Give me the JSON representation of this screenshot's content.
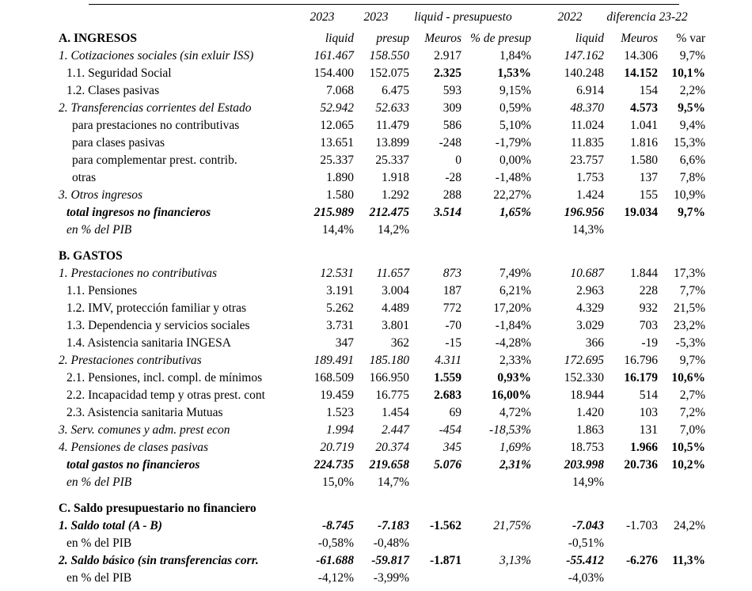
{
  "header_top": {
    "c1": "2023",
    "c2": "2023",
    "c34": "liquid - presupuesto",
    "c5": "2022",
    "c67": "diferencia 23-22"
  },
  "rows": [
    {
      "label": "A. INGRESOS",
      "ls": "b",
      "ind": 0,
      "cells": [
        "liquid",
        "presup",
        "Meuros",
        "% de presup",
        "liquid",
        "Meuros",
        "% var"
      ],
      "cs": [
        "i",
        "i",
        "i",
        "i",
        "i",
        "i",
        "n"
      ]
    },
    {
      "label": "1. Cotizaciones sociales (sin exluir ISS)",
      "ls": "i",
      "ind": 0,
      "cells": [
        "161.467",
        "158.550",
        "2.917",
        "1,84%",
        "147.162",
        "14.306",
        "9,7%"
      ],
      "cs": [
        "i",
        "i",
        "n",
        "n",
        "i",
        "n",
        "n"
      ]
    },
    {
      "label": "1.1. Seguridad Social",
      "ls": "n",
      "ind": 1,
      "cells": [
        "154.400",
        "152.075",
        "2.325",
        "1,53%",
        "140.248",
        "14.152",
        "10,1%"
      ],
      "cs": [
        "n",
        "n",
        "b",
        "b",
        "n",
        "b",
        "b"
      ]
    },
    {
      "label": "1.2. Clases pasivas",
      "ls": "n",
      "ind": 1,
      "cells": [
        "7.068",
        "6.475",
        "593",
        "9,15%",
        "6.914",
        "154",
        "2,2%"
      ],
      "cs": [
        "n",
        "n",
        "n",
        "n",
        "n",
        "n",
        "n"
      ]
    },
    {
      "label": "2. Transferencias corrientes del Estado",
      "ls": "i",
      "ind": 0,
      "cells": [
        "52.942",
        "52.633",
        "309",
        "0,59%",
        "48.370",
        "4.573",
        "9,5%"
      ],
      "cs": [
        "i",
        "i",
        "n",
        "n",
        "i",
        "b",
        "b"
      ]
    },
    {
      "label": "para prestaciones no contributivas",
      "ls": "n",
      "ind": 2,
      "cells": [
        "12.065",
        "11.479",
        "586",
        "5,10%",
        "11.024",
        "1.041",
        "9,4%"
      ],
      "cs": [
        "n",
        "n",
        "n",
        "n",
        "n",
        "n",
        "n"
      ]
    },
    {
      "label": "para clases pasivas",
      "ls": "n",
      "ind": 2,
      "cells": [
        "13.651",
        "13.899",
        "-248",
        "-1,79%",
        "11.835",
        "1.816",
        "15,3%"
      ],
      "cs": [
        "n",
        "n",
        "n",
        "n",
        "n",
        "n",
        "n"
      ]
    },
    {
      "label": "para complementar prest. contrib.",
      "ls": "n",
      "ind": 2,
      "cells": [
        "25.337",
        "25.337",
        "0",
        "0,00%",
        "23.757",
        "1.580",
        "6,6%"
      ],
      "cs": [
        "n",
        "n",
        "n",
        "n",
        "n",
        "n",
        "n"
      ]
    },
    {
      "label": "otras",
      "ls": "n",
      "ind": 2,
      "cells": [
        "1.890",
        "1.918",
        "-28",
        "-1,48%",
        "1.753",
        "137",
        "7,8%"
      ],
      "cs": [
        "n",
        "n",
        "n",
        "n",
        "n",
        "n",
        "n"
      ]
    },
    {
      "label": "3. Otros ingresos",
      "ls": "i",
      "ind": 0,
      "cells": [
        "1.580",
        "1.292",
        "288",
        "22,27%",
        "1.424",
        "155",
        "10,9%"
      ],
      "cs": [
        "n",
        "n",
        "n",
        "n",
        "n",
        "n",
        "n"
      ]
    },
    {
      "label": "total ingresos no financieros",
      "ls": "bi",
      "ind": 1,
      "cells": [
        "215.989",
        "212.475",
        "3.514",
        "1,65%",
        "196.956",
        "19.034",
        "9,7%"
      ],
      "cs": [
        "bi",
        "bi",
        "bi",
        "bi",
        "bi",
        "b",
        "b"
      ]
    },
    {
      "label": "en % del PIB",
      "ls": "i",
      "ind": 1,
      "cells": [
        "14,4%",
        "14,2%",
        "",
        "",
        "14,3%",
        "",
        ""
      ],
      "cs": [
        "n",
        "n",
        "n",
        "n",
        "n",
        "n",
        "n"
      ]
    },
    {
      "gap": true
    },
    {
      "label": "B. GASTOS",
      "ls": "b",
      "ind": 0,
      "cells": [
        "",
        "",
        "",
        "",
        "",
        "",
        ""
      ],
      "cs": [
        "n",
        "n",
        "n",
        "n",
        "n",
        "n",
        "n"
      ]
    },
    {
      "label": "1. Prestaciones no contributivas",
      "ls": "i",
      "ind": 0,
      "cells": [
        "12.531",
        "11.657",
        "873",
        "7,49%",
        "10.687",
        "1.844",
        "17,3%"
      ],
      "cs": [
        "i",
        "i",
        "i",
        "n",
        "i",
        "n",
        "n"
      ]
    },
    {
      "label": "1.1. Pensiones",
      "ls": "n",
      "ind": 1,
      "cells": [
        "3.191",
        "3.004",
        "187",
        "6,21%",
        "2.963",
        "228",
        "7,7%"
      ],
      "cs": [
        "n",
        "n",
        "n",
        "n",
        "n",
        "n",
        "n"
      ]
    },
    {
      "label": "1.2. IMV, protección familiar y otras",
      "ls": "n",
      "ind": 1,
      "cells": [
        "5.262",
        "4.489",
        "772",
        "17,20%",
        "4.329",
        "932",
        "21,5%"
      ],
      "cs": [
        "n",
        "n",
        "n",
        "n",
        "n",
        "n",
        "n"
      ]
    },
    {
      "label": "1.3. Dependencia y servicios sociales",
      "ls": "n",
      "ind": 1,
      "cells": [
        "3.731",
        "3.801",
        "-70",
        "-1,84%",
        "3.029",
        "703",
        "23,2%"
      ],
      "cs": [
        "n",
        "n",
        "n",
        "n",
        "n",
        "n",
        "n"
      ]
    },
    {
      "label": "1.4. Asistencia sanitaria INGESA",
      "ls": "n",
      "ind": 1,
      "cells": [
        "347",
        "362",
        "-15",
        "-4,28%",
        "366",
        "-19",
        "-5,3%"
      ],
      "cs": [
        "n",
        "n",
        "n",
        "n",
        "n",
        "n",
        "n"
      ]
    },
    {
      "label": "2. Prestaciones contributivas",
      "ls": "i",
      "ind": 0,
      "cells": [
        "189.491",
        "185.180",
        "4.311",
        "2,33%",
        "172.695",
        "16.796",
        "9,7%"
      ],
      "cs": [
        "i",
        "i",
        "i",
        "n",
        "i",
        "n",
        "n"
      ]
    },
    {
      "label": "2.1. Pensiones, incl. compl. de mínimos",
      "ls": "n",
      "ind": 1,
      "cells": [
        "168.509",
        "166.950",
        "1.559",
        "0,93%",
        "152.330",
        "16.179",
        "10,6%"
      ],
      "cs": [
        "n",
        "n",
        "b",
        "b",
        "n",
        "b",
        "b"
      ]
    },
    {
      "label": "2.2. Incapacidad temp y otras prest. cont",
      "ls": "n",
      "ind": 1,
      "cells": [
        "19.459",
        "16.775",
        "2.683",
        "16,00%",
        "18.944",
        "514",
        "2,7%"
      ],
      "cs": [
        "n",
        "n",
        "b",
        "b",
        "n",
        "n",
        "n"
      ]
    },
    {
      "label": "2.3. Asistencia sanitaria Mutuas",
      "ls": "n",
      "ind": 1,
      "cells": [
        "1.523",
        "1.454",
        "69",
        "4,72%",
        "1.420",
        "103",
        "7,2%"
      ],
      "cs": [
        "n",
        "n",
        "n",
        "n",
        "n",
        "n",
        "n"
      ]
    },
    {
      "label": "3. Serv. comunes y adm. prest econ",
      "ls": "i",
      "ind": 0,
      "cells": [
        "1.994",
        "2.447",
        "-454",
        "-18,53%",
        "1.863",
        "131",
        "7,0%"
      ],
      "cs": [
        "i",
        "i",
        "i",
        "i",
        "n",
        "n",
        "n"
      ]
    },
    {
      "label": "4. Pensiones de clases pasivas",
      "ls": "i",
      "ind": 0,
      "cells": [
        "20.719",
        "20.374",
        "345",
        "1,69%",
        "18.753",
        "1.966",
        "10,5%"
      ],
      "cs": [
        "i",
        "i",
        "i",
        "i",
        "n",
        "b",
        "b"
      ]
    },
    {
      "label": "total gastos no financieros",
      "ls": "bi",
      "ind": 1,
      "cells": [
        "224.735",
        "219.658",
        "5.076",
        "2,31%",
        "203.998",
        "20.736",
        "10,2%"
      ],
      "cs": [
        "bi",
        "bi",
        "bi",
        "bi",
        "bi",
        "b",
        "b"
      ]
    },
    {
      "label": "en % del PIB",
      "ls": "i",
      "ind": 1,
      "cells": [
        "15,0%",
        "14,7%",
        "",
        "",
        "14,9%",
        "",
        ""
      ],
      "cs": [
        "n",
        "n",
        "n",
        "n",
        "n",
        "n",
        "n"
      ]
    },
    {
      "gap": true
    },
    {
      "label": "C. Saldo presupuestario no financiero",
      "ls": "b",
      "ind": 0,
      "cells": [
        "",
        "",
        "",
        "",
        "",
        "",
        ""
      ],
      "cs": [
        "n",
        "n",
        "n",
        "n",
        "n",
        "n",
        "n"
      ]
    },
    {
      "label": "1. Saldo total (A - B)",
      "ls": "bi",
      "ind": 0,
      "cells": [
        "-8.745",
        "-7.183",
        "-1.562",
        "21,75%",
        "-7.043",
        "-1.703",
        "24,2%"
      ],
      "cs": [
        "bi",
        "bi",
        "b",
        "i",
        "bi",
        "n",
        "n"
      ]
    },
    {
      "label": "en % del PIB",
      "ls": "n",
      "ind": 1,
      "cells": [
        "-0,58%",
        "-0,48%",
        "",
        "",
        "-0,51%",
        "",
        ""
      ],
      "cs": [
        "n",
        "n",
        "n",
        "n",
        "n",
        "n",
        "n"
      ]
    },
    {
      "label": "2. Saldo básico (sin transferencias corr.",
      "ls": "bi",
      "ind": 0,
      "cells": [
        "-61.688",
        "-59.817",
        "-1.871",
        "3,13%",
        "-55.412",
        "-6.276",
        "11,3%"
      ],
      "cs": [
        "bi",
        "bi",
        "b",
        "i",
        "bi",
        "b",
        "b"
      ]
    },
    {
      "label": "en % del PIB",
      "ls": "n",
      "ind": 1,
      "cells": [
        "-4,12%",
        "-3,99%",
        "",
        "",
        "-4,03%",
        "",
        ""
      ],
      "cs": [
        "n",
        "n",
        "n",
        "n",
        "n",
        "n",
        "n"
      ]
    }
  ]
}
